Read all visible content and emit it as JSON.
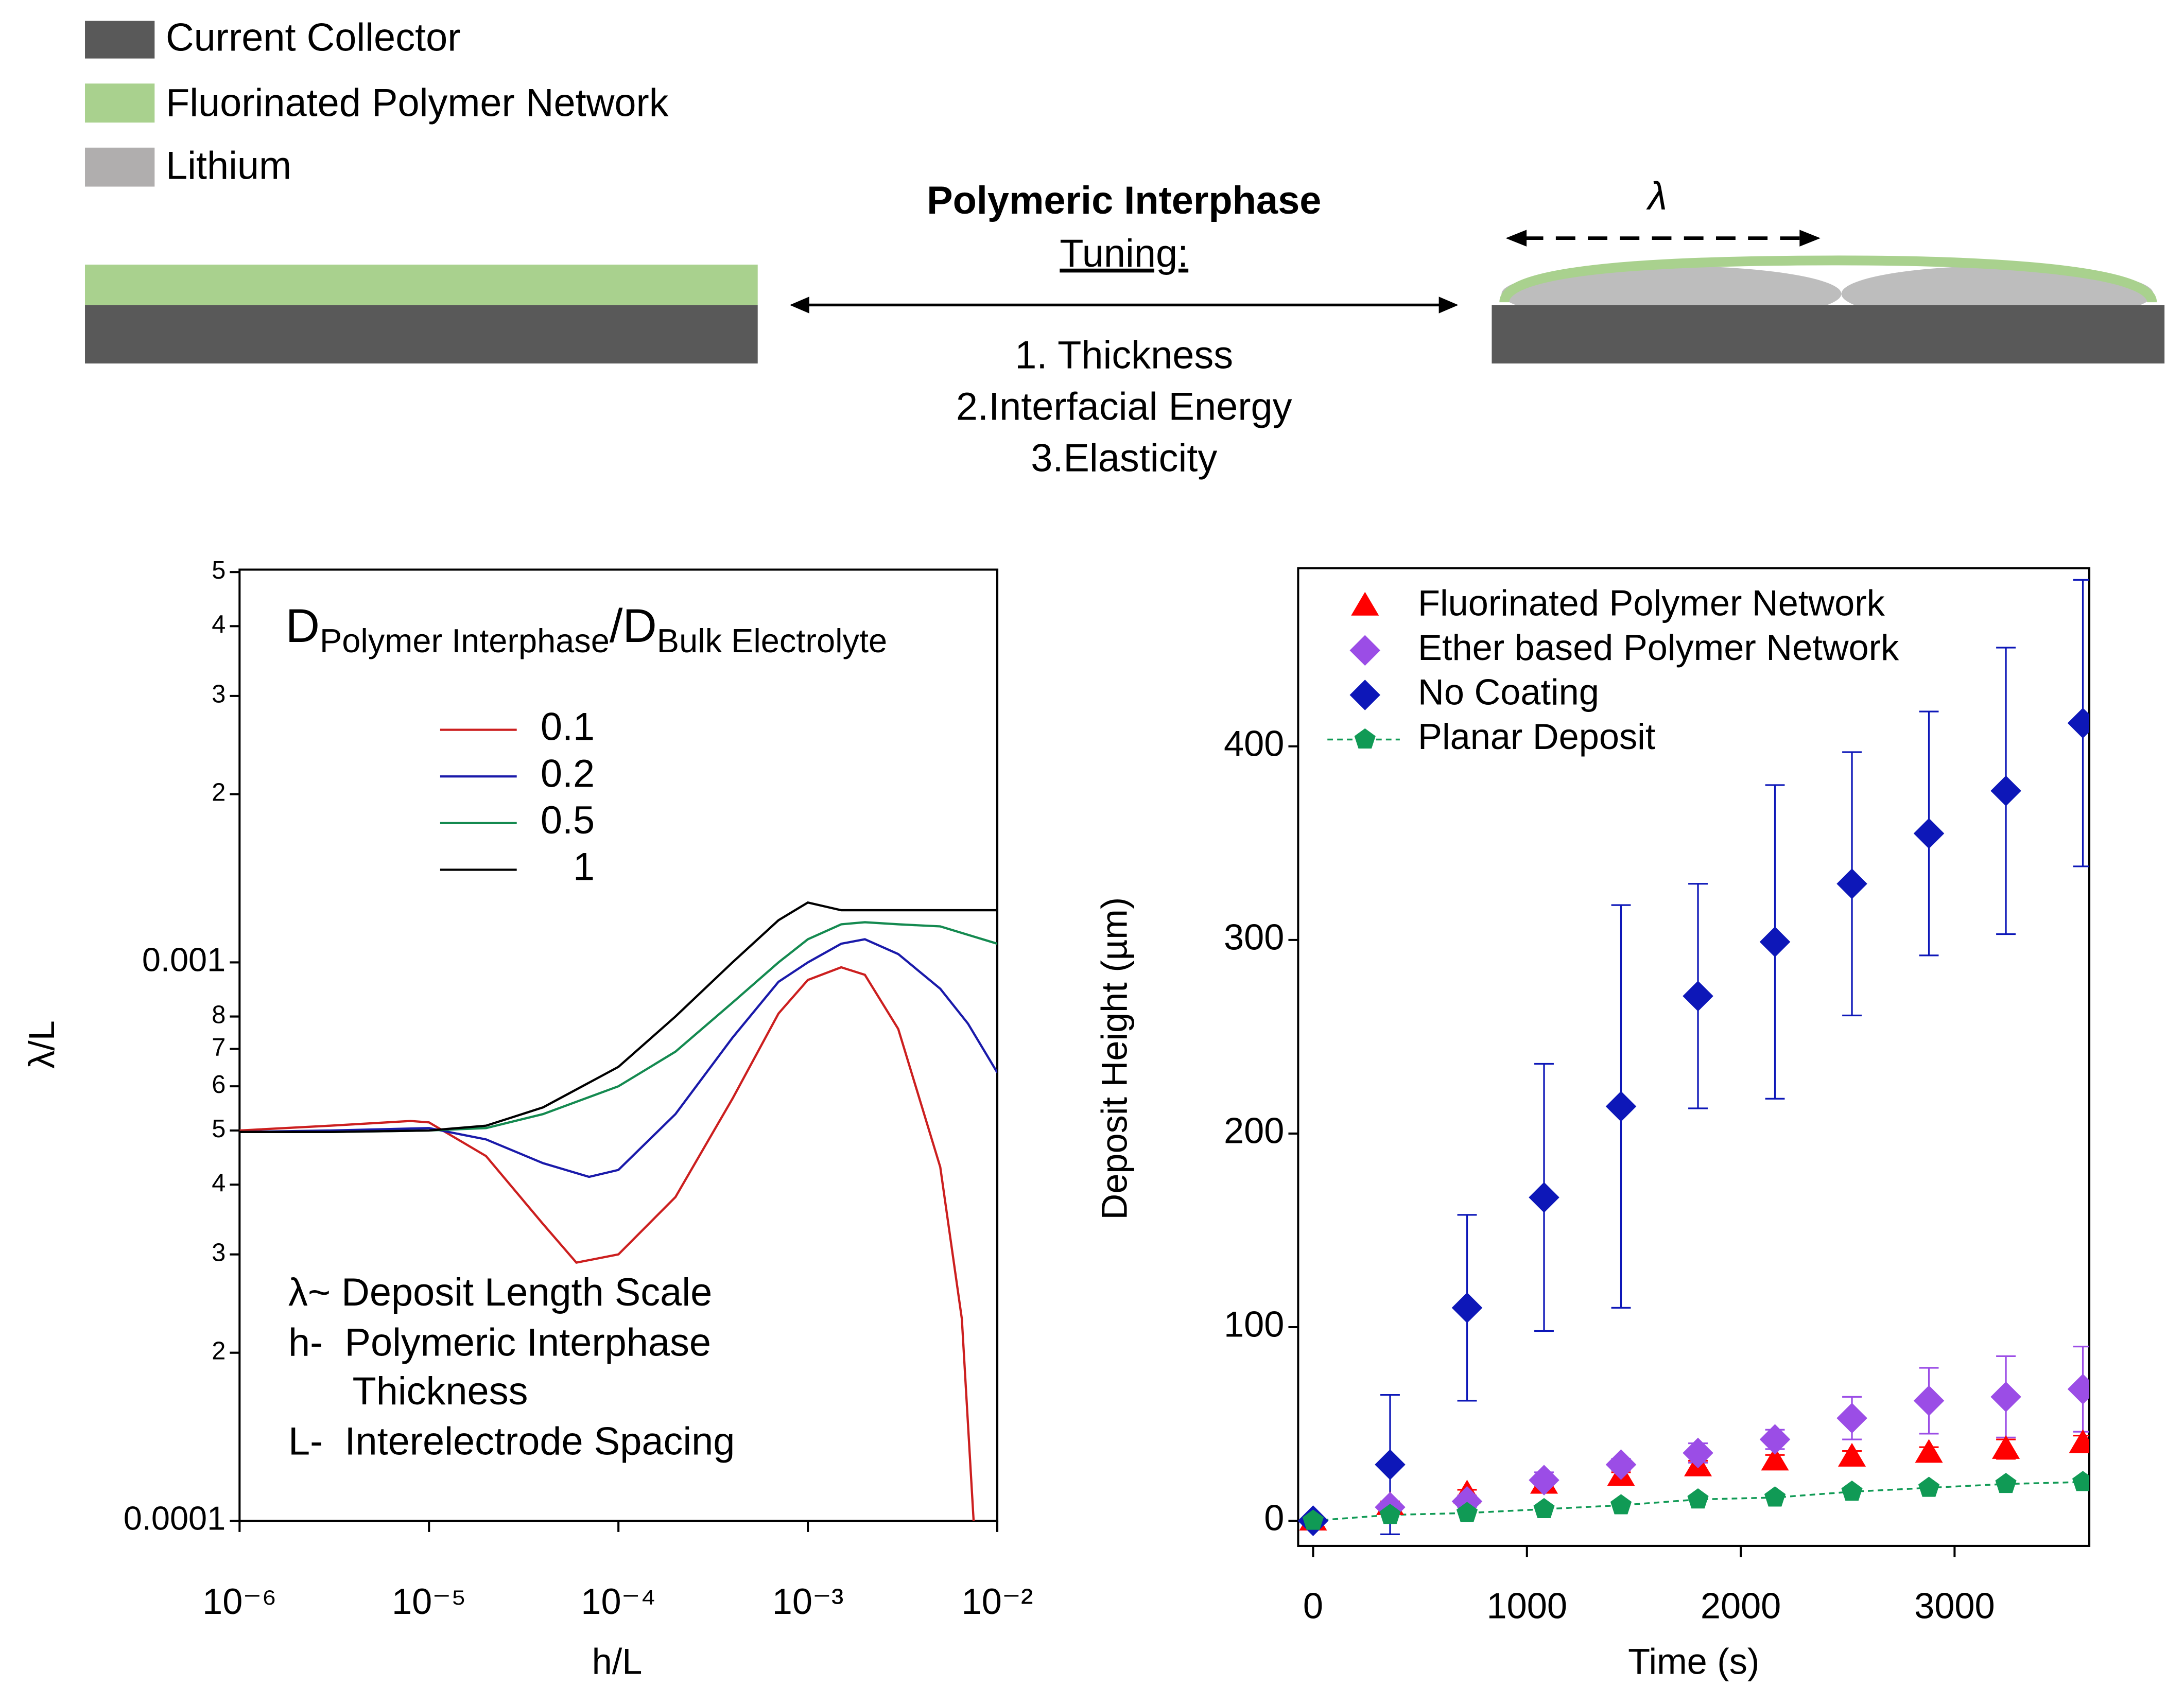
{
  "diagram": {
    "legend": [
      "Current Collector",
      "Fluorinated Polymer Network",
      "Lithium"
    ],
    "title": "Polymeric Interphase",
    "subtitle": "Tuning:",
    "items": [
      "1. Thickness",
      "2.Interfacial Energy",
      "3.Elasticity"
    ],
    "symbol": "λ"
  },
  "chart_data": [
    {
      "type": "line",
      "x_label": "h/L",
      "y_label": "λ/L",
      "xscale": "log",
      "yscale": "log",
      "xlim": [
        1e-06,
        0.01
      ],
      "ylim": [
        0.0001,
        0.00505
      ],
      "xticks": [
        {
          "value": 1e-06,
          "label": "10⁻⁶"
        },
        {
          "value": 1e-05,
          "label": "10⁻⁵"
        },
        {
          "value": 0.0001,
          "label": "10⁻⁴"
        },
        {
          "value": 0.001,
          "label": "10⁻³"
        },
        {
          "value": 0.01,
          "label": "10⁻²"
        }
      ],
      "yticks": [
        0.0001,
        {
          "value": 0.0002,
          "label": "2"
        },
        {
          "value": 0.0003,
          "label": "3"
        },
        {
          "value": 0.0004,
          "label": "4"
        },
        {
          "value": 0.0005,
          "label": "5"
        },
        {
          "value": 0.0006,
          "label": "6"
        },
        {
          "value": 0.0007,
          "label": "7"
        },
        {
          "value": 0.0008,
          "label": "8"
        },
        0.001,
        {
          "value": 0.002,
          "label": "2"
        },
        {
          "value": 0.003,
          "label": "3"
        },
        {
          "value": 0.004,
          "label": "4"
        },
        {
          "value": 0.005,
          "label": "5"
        }
      ],
      "legend_title": {
        "symbol": "D",
        "numerator": "Polymer Interphase",
        "separator": "/D",
        "denominator": "Bulk Electrolyte"
      },
      "annotations": [
        "λ~ Deposit Length Scale",
        "h-  Polymeric Interphase",
        "Thickness",
        "L-  Interelectrode Spacing"
      ],
      "series": [
        {
          "name": "0.1",
          "color": "#cc1f1f",
          "x": [
            1e-06,
            3e-06,
            8e-06,
            1e-05,
            2e-05,
            4e-05,
            6e-05,
            0.0001,
            0.0002,
            0.0004,
            0.0007,
            0.001,
            0.0015,
            0.002,
            0.003,
            0.005,
            0.0065,
            0.0075
          ],
          "values": [
            0.0005,
            0.00051,
            0.00052,
            0.000517,
            0.00045,
            0.00034,
            0.00029,
            0.0003,
            0.00038,
            0.00057,
            0.00081,
            0.00093,
            0.00098,
            0.00095,
            0.00076,
            0.00043,
            0.00023,
            0.0001
          ]
        },
        {
          "name": "0.2",
          "color": "#1a1aaa",
          "x": [
            1e-06,
            3e-06,
            1e-05,
            2e-05,
            4e-05,
            7e-05,
            0.0001,
            0.0002,
            0.0004,
            0.0007,
            0.001,
            0.0015,
            0.002,
            0.003,
            0.005,
            0.007,
            0.01
          ],
          "values": [
            0.000497,
            0.0005,
            0.000505,
            0.000482,
            0.000437,
            0.000413,
            0.000425,
            0.000535,
            0.000733,
            0.000923,
            0.001,
            0.00108,
            0.0011,
            0.001035,
            0.000897,
            0.000777,
            0.000635
          ]
        },
        {
          "name": "0.5",
          "color": "#148a50",
          "x": [
            1e-06,
            3e-06,
            1e-05,
            2e-05,
            4e-05,
            0.0001,
            0.0002,
            0.0004,
            0.0007,
            0.001,
            0.0015,
            0.002,
            0.003,
            0.005,
            0.01
          ],
          "values": [
            0.000497,
            0.000497,
            0.0005,
            0.000505,
            0.000535,
            0.0006,
            0.000692,
            0.000847,
            0.001,
            0.0011,
            0.00117,
            0.00118,
            0.00117,
            0.00116,
            0.00108
          ]
        },
        {
          "name": "1",
          "color": "#000000",
          "x": [
            1e-06,
            3e-06,
            1e-05,
            2e-05,
            4e-05,
            0.0001,
            0.0002,
            0.0004,
            0.0007,
            0.001,
            0.0015,
            0.002,
            0.01
          ],
          "values": [
            0.000497,
            0.000497,
            0.0005,
            0.00051,
            0.00055,
            0.00065,
            0.0008,
            0.001,
            0.00119,
            0.00128,
            0.00124,
            0.00124,
            0.00124
          ]
        }
      ]
    },
    {
      "type": "scatter",
      "x_label": "Time (s)",
      "y_label": "Deposit Height (µm)",
      "xlim": [
        -70,
        3630
      ],
      "ylim": [
        -13,
        492
      ],
      "xticks": [
        0,
        1000,
        2000,
        3000
      ],
      "yticks": [
        0,
        100,
        200,
        300,
        400
      ],
      "x": [
        0,
        360,
        720,
        1080,
        1440,
        1800,
        2160,
        2520,
        2880,
        3240,
        3600
      ],
      "series": [
        {
          "name": "Fluorinated Polymer Network",
          "color": "#ff0000",
          "marker": "triangle",
          "values": [
            0,
            8,
            14,
            19,
            23,
            28,
            31,
            33,
            35,
            37,
            40
          ],
          "errors": [
            0,
            2,
            2,
            2,
            2,
            3,
            3,
            3,
            3,
            5,
            4
          ]
        },
        {
          "name": "Ether based Polymer Network",
          "color": "#9b4de6",
          "marker": "diamond",
          "values": [
            0,
            7,
            10,
            21,
            29,
            35,
            42,
            53,
            62,
            64,
            68
          ],
          "errors": [
            0,
            2,
            3,
            4,
            3,
            5,
            5,
            11,
            17,
            21,
            22
          ]
        },
        {
          "name": "No Coating",
          "color": "#0d17b8",
          "marker": "diamond",
          "values": [
            0,
            29,
            110,
            167,
            214,
            271,
            299,
            329,
            355,
            377,
            412
          ],
          "errors": [
            0,
            36,
            48,
            69,
            104,
            58,
            81,
            68,
            63,
            74,
            74
          ]
        },
        {
          "name": "Planar Deposit",
          "color": "#109a55",
          "marker": "pentagon",
          "line": "dashed",
          "values": [
            0,
            3,
            4,
            6,
            8,
            11,
            12,
            15,
            17,
            19,
            20
          ]
        }
      ]
    }
  ]
}
